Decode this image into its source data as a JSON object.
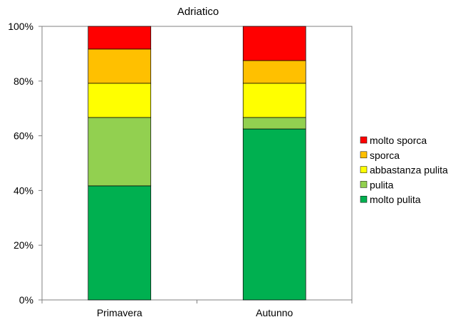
{
  "chart_data": {
    "type": "bar",
    "stacked": true,
    "percent": true,
    "title": "Adriatico",
    "xlabel": "",
    "ylabel": "",
    "categories": [
      "Primavera",
      "Autunno"
    ],
    "ylim": [
      0,
      100
    ],
    "yticks": [
      "0%",
      "20%",
      "40%",
      "60%",
      "80%",
      "100%"
    ],
    "grid": false,
    "legend_position": "right",
    "series": [
      {
        "name": "molto pulita",
        "color": "#00b050",
        "values": [
          41.7,
          62.5
        ]
      },
      {
        "name": "pulita",
        "color": "#92d050",
        "values": [
          25.0,
          4.2
        ]
      },
      {
        "name": "abbastanza pulita",
        "color": "#ffff00",
        "values": [
          12.5,
          12.5
        ]
      },
      {
        "name": "sporca",
        "color": "#ffc000",
        "values": [
          12.5,
          8.3
        ]
      },
      {
        "name": "molto sporca",
        "color": "#ff0000",
        "values": [
          8.3,
          12.5
        ]
      }
    ]
  }
}
